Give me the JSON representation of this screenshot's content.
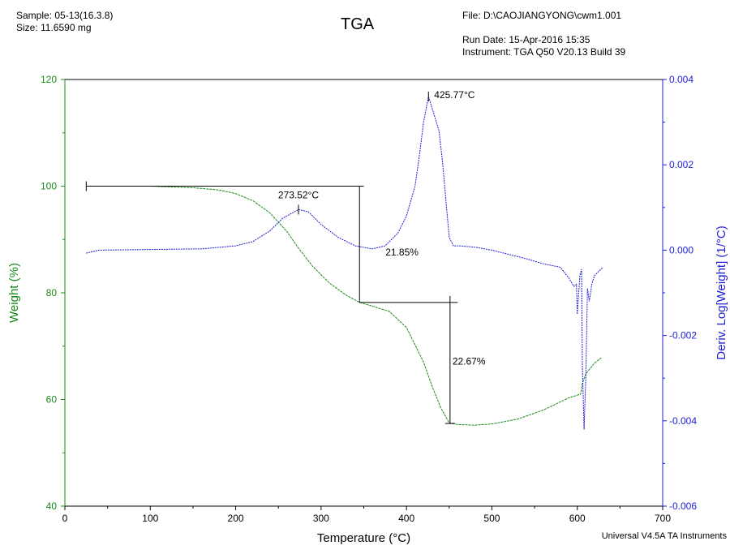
{
  "header": {
    "sample": "Sample: 05-13(16.3.8)",
    "size": "Size:  11.6590 mg",
    "title": "TGA",
    "file": "File: D:\\CAOJIANGYONG\\cwm1.001",
    "run_date": "Run Date: 15-Apr-2016 15:35",
    "instrument": "Instrument: TGA Q50 V20.13 Build 39"
  },
  "footer": "Universal V4.5A TA Instruments",
  "colors": {
    "weight": "#1a8a1a",
    "deriv": "#1f1fd6",
    "axis": "#000000",
    "annot": "#000000"
  },
  "chart_data": {
    "type": "line",
    "title": "TGA",
    "xlabel": "Temperature (°C)",
    "ylabel": "Weight (%)",
    "y2label": "Deriv. Log[Weight] (1/°C)",
    "xlim": [
      0,
      700
    ],
    "ylim": [
      40,
      120
    ],
    "y2lim": [
      -0.006,
      0.004
    ],
    "x_ticks": [
      0,
      100,
      200,
      300,
      400,
      500,
      600,
      700
    ],
    "y_ticks": [
      40,
      60,
      80,
      100,
      120
    ],
    "y2_ticks": [
      "-0.006",
      "-0.004",
      "-0.002",
      "0.000",
      "0.002",
      "0.004"
    ],
    "grid": false,
    "series": [
      {
        "name": "Weight (%)",
        "axis": "left",
        "x": [
          25,
          50,
          100,
          150,
          180,
          200,
          220,
          240,
          260,
          273,
          290,
          310,
          330,
          345,
          360,
          380,
          400,
          420,
          430,
          440,
          450,
          460,
          480,
          500,
          530,
          560,
          590,
          604,
          606,
          610,
          615,
          620,
          628
        ],
        "y": [
          100.0,
          100.0,
          100.0,
          99.7,
          99.3,
          98.6,
          97.3,
          95.0,
          91.5,
          88.5,
          85.0,
          81.8,
          79.5,
          78.2,
          77.5,
          76.5,
          73.5,
          67.0,
          62.5,
          58.5,
          55.6,
          55.3,
          55.2,
          55.4,
          56.3,
          58.0,
          60.3,
          61.0,
          63.0,
          64.8,
          65.8,
          66.8,
          67.8
        ]
      },
      {
        "name": "Deriv. Log[Weight] (1/°C)",
        "axis": "right",
        "x": [
          25,
          40,
          80,
          120,
          160,
          200,
          220,
          240,
          255,
          273.52,
          285,
          300,
          320,
          340,
          360,
          375,
          390,
          400,
          410,
          415,
          420,
          425.77,
          432,
          438,
          442,
          446,
          450,
          455,
          462,
          480,
          500,
          520,
          540,
          560,
          580,
          590,
          596,
          599,
          600,
          603,
          605,
          606,
          608,
          610,
          612,
          614,
          617,
          620,
          625,
          630
        ],
        "y": [
          -7e-05,
          0.0,
          1e-05,
          2e-05,
          3e-05,
          0.0001,
          0.0002,
          0.00045,
          0.00075,
          0.00095,
          0.0009,
          0.0006,
          0.0003,
          0.0001,
          3e-05,
          0.0001,
          0.0004,
          0.0008,
          0.0015,
          0.0022,
          0.003,
          0.0036,
          0.0032,
          0.0028,
          0.0021,
          0.0012,
          0.0003,
          0.0001,
          0.0001,
          7e-05,
          0.0,
          -0.0001,
          -0.0002,
          -0.00032,
          -0.0004,
          -0.00065,
          -0.00085,
          -0.0008,
          -0.0015,
          -0.0006,
          -0.00045,
          -0.0027,
          -0.0042,
          -0.003,
          -0.0009,
          -0.0012,
          -0.0008,
          -0.0006,
          -0.0005,
          -0.0004
        ]
      }
    ],
    "annotations": {
      "peak_labels": [
        {
          "text": "273.52°C",
          "x": 273.52,
          "y2": 0.00095
        },
        {
          "text": "425.77°C",
          "x": 425.77,
          "y2": 0.0036
        }
      ],
      "steps": [
        {
          "text": "21.85%",
          "x_start": 25,
          "x_end": 350,
          "x_line": 345,
          "y_top": 100.0,
          "y_bottom": 78.2
        },
        {
          "text": "22.67%",
          "x_start": 345,
          "x_end": 460,
          "x_line": 451,
          "y_top": 78.2,
          "y_bottom": 55.5
        }
      ]
    }
  }
}
